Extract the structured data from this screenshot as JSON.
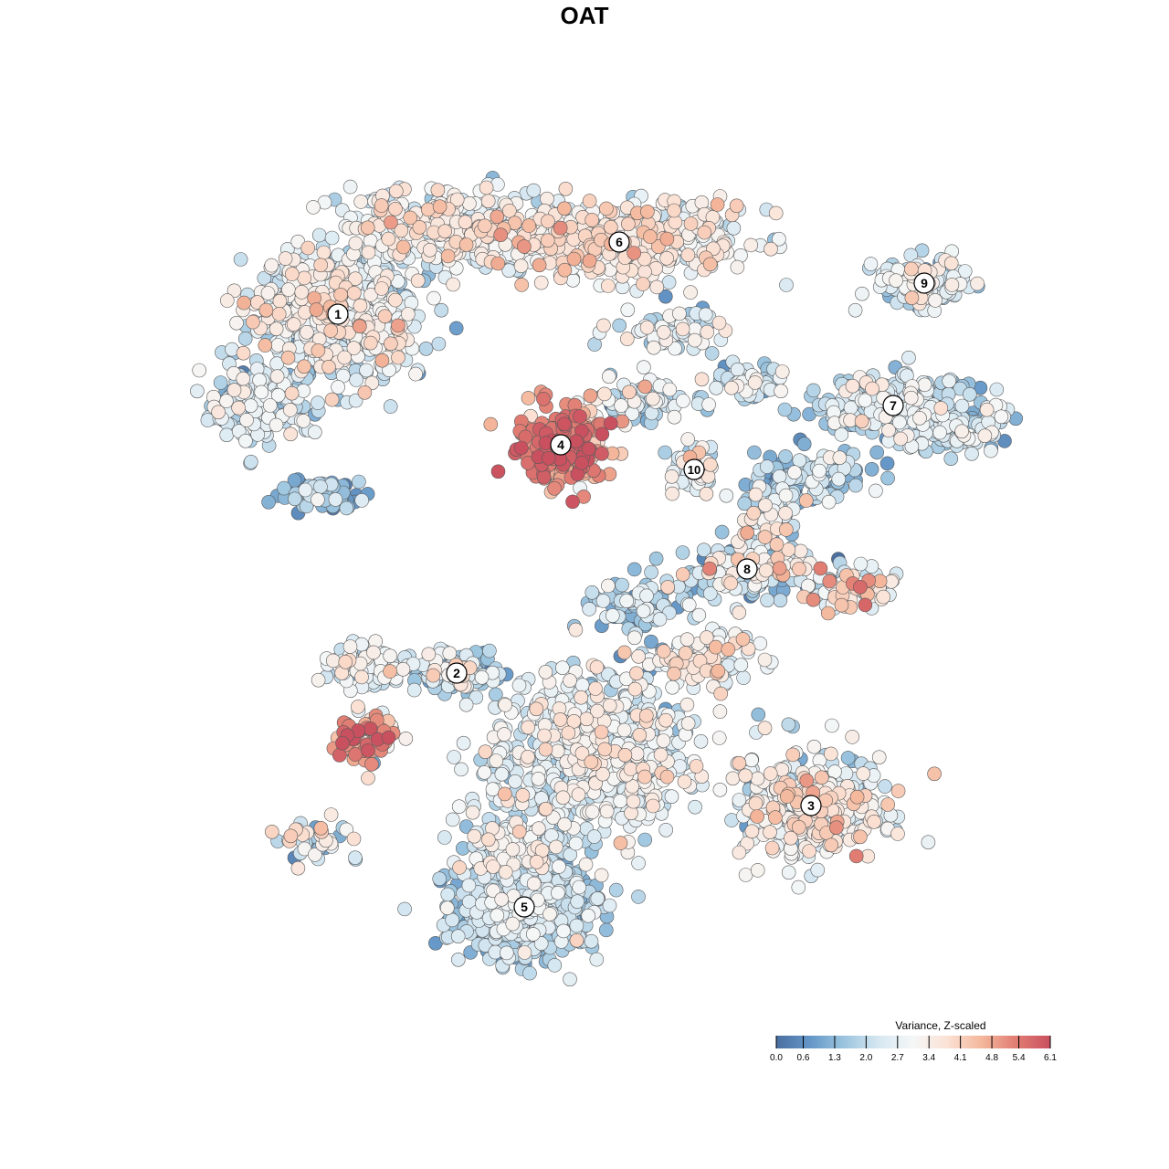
{
  "chart_data": {
    "type": "scatter",
    "title": "OAT",
    "xlabel": "",
    "ylabel": "",
    "grid": false,
    "axes_visible": false,
    "color_scale": {
      "title": "Variance, Z-scaled",
      "min": 0.0,
      "max": 6.1,
      "ticks": [
        "0.0",
        "0.6",
        "1.3",
        "2.0",
        "2.7",
        "3.4",
        "4.1",
        "4.8",
        "5.4",
        "6.1"
      ],
      "palette": [
        "#4a6fa0",
        "#6497c8",
        "#9cc5df",
        "#d7e8f2",
        "#f5f7f7",
        "#fbe1d4",
        "#f4b79b",
        "#e17d73",
        "#c9505f"
      ],
      "legend_position": "bottom-right"
    },
    "clusters": [
      {
        "label": "1",
        "x": 370,
        "y": 344,
        "spread": [
          78,
          66
        ],
        "n": 700,
        "mean_value": 2.6,
        "sd": 0.8
      },
      {
        "label": "2",
        "x": 500,
        "y": 737,
        "spread": [
          38,
          20
        ],
        "n": 120,
        "mean_value": 2.2,
        "sd": 0.9
      },
      {
        "label": "3",
        "x": 888,
        "y": 882,
        "spread": [
          74,
          52
        ],
        "n": 420,
        "mean_value": 2.9,
        "sd": 0.8
      },
      {
        "label": "4",
        "x": 614,
        "y": 487,
        "spread": [
          46,
          40
        ],
        "n": 240,
        "mean_value": 4.9,
        "sd": 0.9
      },
      {
        "label": "5",
        "x": 574,
        "y": 993,
        "spread": [
          72,
          48
        ],
        "n": 600,
        "mean_value": 1.8,
        "sd": 0.6
      },
      {
        "label": "6",
        "x": 678,
        "y": 265,
        "spread": [
          130,
          38
        ],
        "n": 450,
        "mean_value": 3.2,
        "sd": 0.7
      },
      {
        "label": "7",
        "x": 978,
        "y": 444,
        "spread": [
          80,
          28
        ],
        "n": 260,
        "mean_value": 2.2,
        "sd": 0.7
      },
      {
        "label": "8",
        "x": 818,
        "y": 623,
        "spread": [
          58,
          26
        ],
        "n": 160,
        "mean_value": 2.4,
        "sd": 1.1
      },
      {
        "label": "9",
        "x": 1012,
        "y": 310,
        "spread": [
          46,
          22
        ],
        "n": 140,
        "mean_value": 2.4,
        "sd": 0.8
      },
      {
        "label": "10",
        "x": 760,
        "y": 514,
        "spread": [
          22,
          24
        ],
        "n": 60,
        "mean_value": 2.4,
        "sd": 0.8
      }
    ],
    "subgroups": [
      {
        "x": 650,
        "y": 820,
        "spread": [
          110,
          80
        ],
        "n": 650,
        "mean_value": 2.6,
        "sd": 0.7
      },
      {
        "x": 560,
        "y": 930,
        "spread": [
          50,
          30
        ],
        "n": 150,
        "mean_value": 2.3,
        "sd": 0.8
      },
      {
        "x": 400,
        "y": 810,
        "spread": [
          34,
          26
        ],
        "n": 90,
        "mean_value": 4.3,
        "sd": 1.2
      },
      {
        "x": 405,
        "y": 730,
        "spread": [
          50,
          20
        ],
        "n": 90,
        "mean_value": 2.5,
        "sd": 0.7
      },
      {
        "x": 350,
        "y": 540,
        "spread": [
          40,
          18
        ],
        "n": 70,
        "mean_value": 1.2,
        "sd": 0.6
      },
      {
        "x": 280,
        "y": 440,
        "spread": [
          50,
          40
        ],
        "n": 160,
        "mean_value": 2.2,
        "sd": 0.7
      },
      {
        "x": 480,
        "y": 250,
        "spread": [
          90,
          40
        ],
        "n": 300,
        "mean_value": 2.9,
        "sd": 0.7
      },
      {
        "x": 1050,
        "y": 470,
        "spread": [
          50,
          20
        ],
        "n": 110,
        "mean_value": 2.0,
        "sd": 0.7
      },
      {
        "x": 930,
        "y": 645,
        "spread": [
          45,
          20
        ],
        "n": 80,
        "mean_value": 3.2,
        "sd": 1.1
      },
      {
        "x": 890,
        "y": 520,
        "spread": [
          60,
          25
        ],
        "n": 100,
        "mean_value": 1.7,
        "sd": 0.8
      },
      {
        "x": 700,
        "y": 440,
        "spread": [
          55,
          25
        ],
        "n": 80,
        "mean_value": 2.1,
        "sd": 1.0
      },
      {
        "x": 740,
        "y": 360,
        "spread": [
          50,
          25
        ],
        "n": 70,
        "mean_value": 2.3,
        "sd": 0.8
      },
      {
        "x": 760,
        "y": 720,
        "spread": [
          60,
          30
        ],
        "n": 120,
        "mean_value": 2.9,
        "sd": 0.8
      },
      {
        "x": 700,
        "y": 660,
        "spread": [
          50,
          25
        ],
        "n": 90,
        "mean_value": 1.9,
        "sd": 0.9
      },
      {
        "x": 340,
        "y": 920,
        "spread": [
          40,
          20
        ],
        "n": 40,
        "mean_value": 2.6,
        "sd": 1.0
      },
      {
        "x": 840,
        "y": 570,
        "spread": [
          30,
          40
        ],
        "n": 70,
        "mean_value": 2.5,
        "sd": 1.0
      },
      {
        "x": 820,
        "y": 420,
        "spread": [
          40,
          18
        ],
        "n": 60,
        "mean_value": 2.0,
        "sd": 0.9
      }
    ],
    "x_range": [
      150,
      1180
    ],
    "y_range": [
      150,
      1120
    ]
  }
}
